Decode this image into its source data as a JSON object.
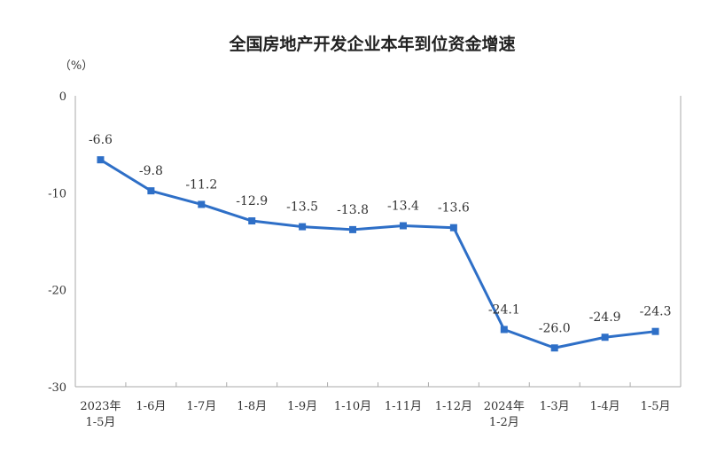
{
  "chart_data": {
    "type": "line",
    "title": "全国房地产开发企业本年到位资金增速",
    "ylabel": "（%）",
    "ylim": [
      -30,
      0
    ],
    "yticks": [
      0,
      -10,
      -20,
      -30
    ],
    "grid": false,
    "categories": [
      [
        "2023年",
        "1-5月"
      ],
      [
        "1-6月"
      ],
      [
        "1-7月"
      ],
      [
        "1-8月"
      ],
      [
        "1-9月"
      ],
      [
        "1-10月"
      ],
      [
        "1-11月"
      ],
      [
        "1-12月"
      ],
      [
        "2024年",
        "1-2月"
      ],
      [
        "1-3月"
      ],
      [
        "1-4月"
      ],
      [
        "1-5月"
      ]
    ],
    "values": [
      -6.6,
      -9.8,
      -11.2,
      -12.9,
      -13.5,
      -13.8,
      -13.4,
      -13.6,
      -24.1,
      -26.0,
      -24.9,
      -24.3
    ],
    "data_labels": [
      "-6.6",
      "-9.8",
      "-11.2",
      "-12.9",
      "-13.5",
      "-13.8",
      "-13.4",
      "-13.6",
      "-24.1",
      "-26.0",
      "-24.9",
      "-24.3"
    ],
    "line_color": "#2e6fc7",
    "axis_color": "#aaaaaa"
  }
}
